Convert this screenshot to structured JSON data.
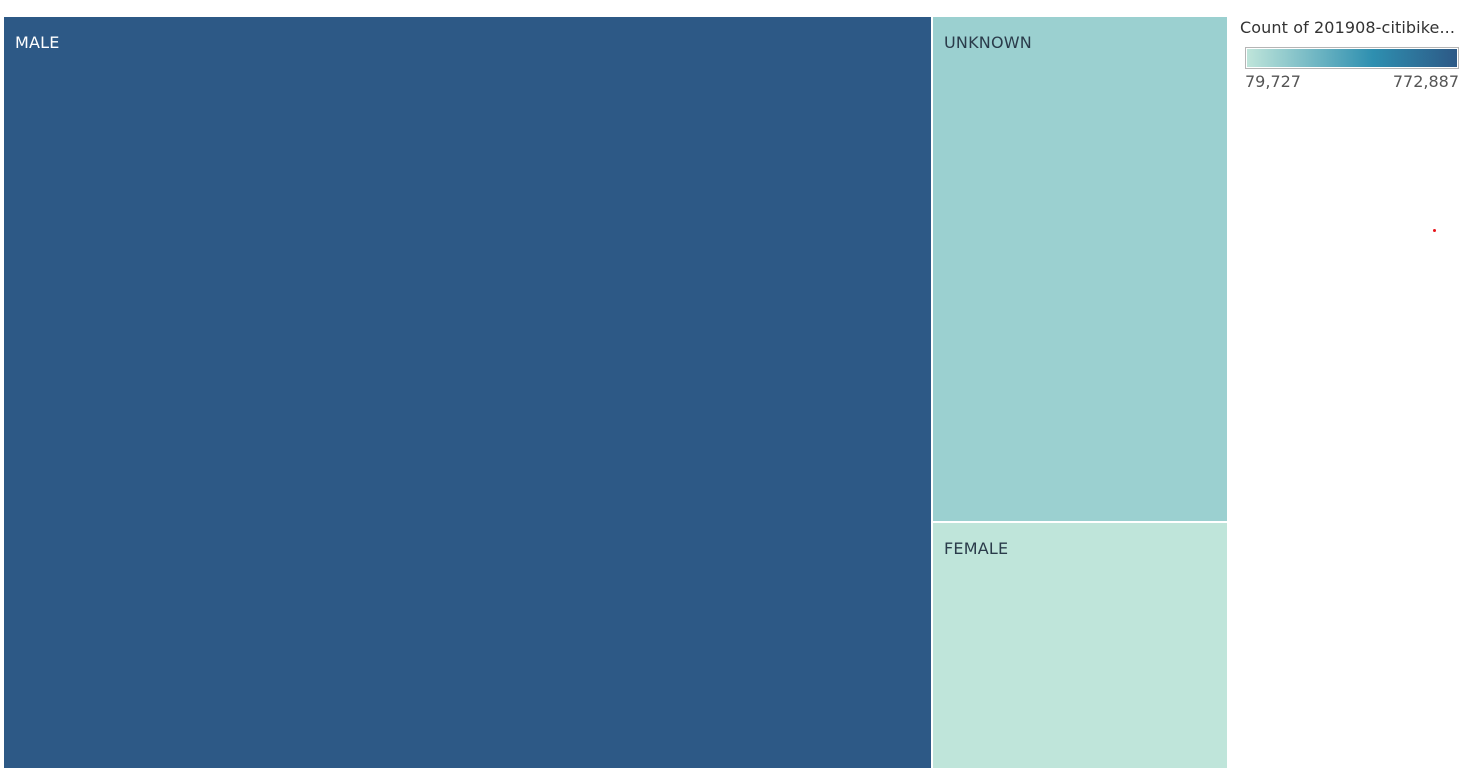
{
  "chart_data": {
    "type": "treemap",
    "series": [
      {
        "name": "MALE",
        "value": 772887,
        "label": "MALE"
      },
      {
        "name": "UNKNOWN",
        "value": 165000,
        "label": "UNKNOWN"
      },
      {
        "name": "FEMALE",
        "value": 79727,
        "label": "FEMALE"
      }
    ],
    "legend": {
      "title": "Count of 201908-citibike...",
      "min_label": "79,727",
      "max_label": "772,887",
      "min": 79727,
      "max": 772887,
      "placement": "top-right"
    },
    "colors": {
      "low": "#bfe5da",
      "mid": "#2e8fb0",
      "high": "#2d5986",
      "dark_text": "#2a3b4a",
      "light_text": "#ffffff"
    }
  }
}
